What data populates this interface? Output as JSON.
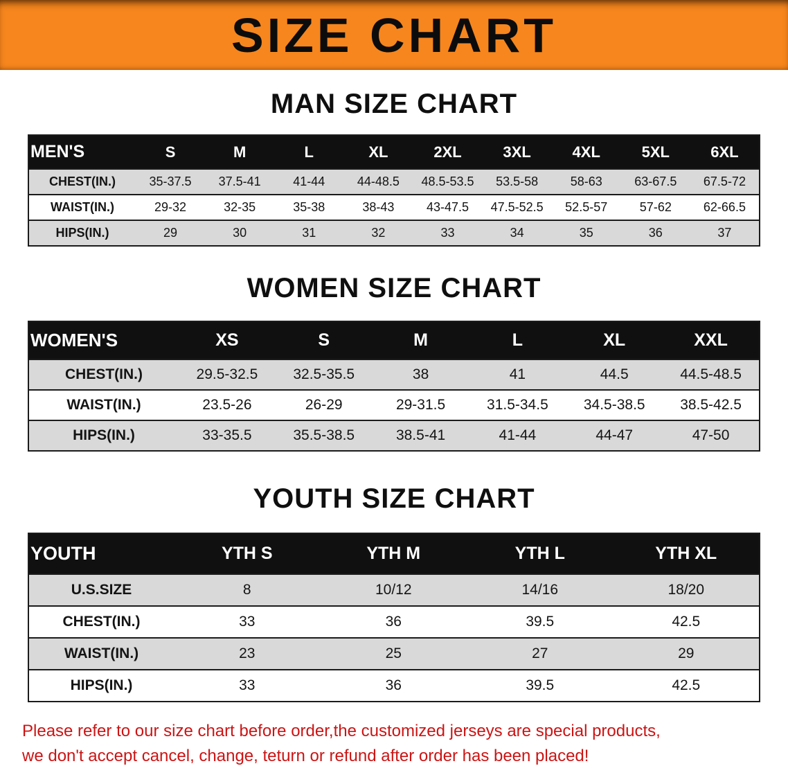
{
  "banner": {
    "title": "SIZE CHART"
  },
  "colors": {
    "banner-bg": "#F6861D",
    "table-header-bg": "#101010",
    "table-header-text": "#FFFFFF",
    "row-stripe": "#D9D9D9",
    "notice-red": "#CC1414"
  },
  "chart_data": [
    {
      "type": "table",
      "title": "MAN SIZE CHART",
      "columns": [
        "MEN'S",
        "S",
        "M",
        "L",
        "XL",
        "2XL",
        "3XL",
        "4XL",
        "5XL",
        "6XL"
      ],
      "rows": [
        [
          "CHEST(IN.)",
          "35-37.5",
          "37.5-41",
          "41-44",
          "44-48.5",
          "48.5-53.5",
          "53.5-58",
          "58-63",
          "63-67.5",
          "67.5-72"
        ],
        [
          "WAIST(IN.)",
          "29-32",
          "32-35",
          "35-38",
          "38-43",
          "43-47.5",
          "47.5-52.5",
          "52.5-57",
          "57-62",
          "62-66.5"
        ],
        [
          "HIPS(IN.)",
          "29",
          "30",
          "31",
          "32",
          "33",
          "34",
          "35",
          "36",
          "37"
        ]
      ]
    },
    {
      "type": "table",
      "title": "WOMEN SIZE CHART",
      "columns": [
        "WOMEN'S",
        "XS",
        "S",
        "M",
        "L",
        "XL",
        "XXL"
      ],
      "rows": [
        [
          "CHEST(IN.)",
          "29.5-32.5",
          "32.5-35.5",
          "38",
          "41",
          "44.5",
          "44.5-48.5"
        ],
        [
          "WAIST(IN.)",
          "23.5-26",
          "26-29",
          "29-31.5",
          "31.5-34.5",
          "34.5-38.5",
          "38.5-42.5"
        ],
        [
          "HIPS(IN.)",
          "33-35.5",
          "35.5-38.5",
          "38.5-41",
          "41-44",
          "44-47",
          "47-50"
        ]
      ]
    },
    {
      "type": "table",
      "title": "YOUTH SIZE CHART",
      "columns": [
        "YOUTH",
        "YTH S",
        "YTH M",
        "YTH L",
        "YTH XL"
      ],
      "rows": [
        [
          "U.S.SIZE",
          "8",
          "10/12",
          "14/16",
          "18/20"
        ],
        [
          "CHEST(IN.)",
          "33",
          "36",
          "39.5",
          "42.5"
        ],
        [
          "WAIST(IN.)",
          "23",
          "25",
          "27",
          "29"
        ],
        [
          "HIPS(IN.)",
          "33",
          "36",
          "39.5",
          "42.5"
        ]
      ]
    }
  ],
  "notice": {
    "lines": [
      "Please refer to our size chart before order,the customized jerseys are special products,",
      "we don't accept cancel, change, teturn or refund after order has been placed!"
    ]
  }
}
